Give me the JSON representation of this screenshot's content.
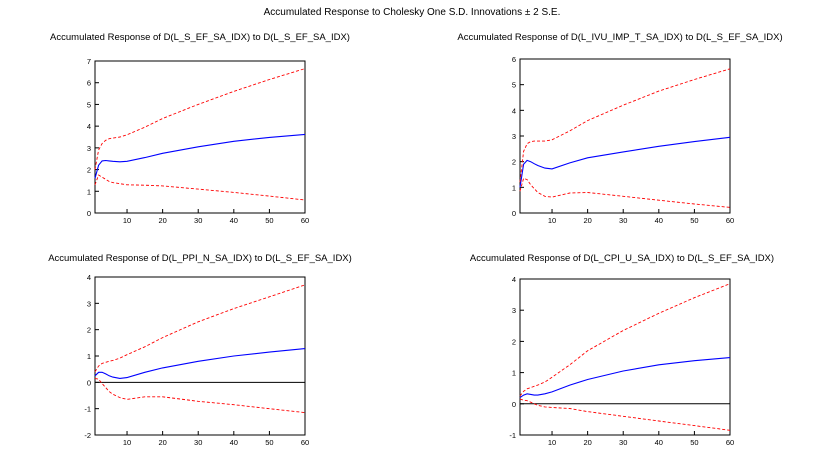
{
  "title": "Accumulated Response to Cholesky One S.D. Innovations ± 2 S.E.",
  "colors": {
    "response": "#0000ff",
    "bands": "#ff0000",
    "zero_line": "#000000",
    "frame": "#000000"
  },
  "chart_data": [
    {
      "type": "line",
      "title": "Accumulated Response of D(L_S_EF_SA_IDX) to D(L_S_EF_SA_IDX)",
      "xlim": [
        1,
        60
      ],
      "ylim": [
        0,
        7
      ],
      "xticks": [
        10,
        20,
        30,
        40,
        50,
        60
      ],
      "yticks": [
        0,
        1,
        2,
        3,
        4,
        5,
        6,
        7
      ],
      "zero_line": false,
      "x": [
        1,
        2,
        3,
        4,
        5,
        6,
        8,
        10,
        15,
        20,
        30,
        40,
        50,
        60
      ],
      "series": [
        {
          "values": [
            1.6,
            2.2,
            2.4,
            2.42,
            2.4,
            2.38,
            2.36,
            2.38,
            2.55,
            2.75,
            3.05,
            3.3,
            3.48,
            3.62
          ]
        },
        {
          "values": [
            2.0,
            2.9,
            3.2,
            3.35,
            3.42,
            3.45,
            3.5,
            3.6,
            3.95,
            4.35,
            5.0,
            5.6,
            6.15,
            6.65
          ]
        },
        {
          "values": [
            1.3,
            1.75,
            1.65,
            1.55,
            1.45,
            1.4,
            1.35,
            1.3,
            1.28,
            1.25,
            1.1,
            0.95,
            0.78,
            0.6
          ]
        }
      ]
    },
    {
      "type": "line",
      "title": "Accumulated Response of D(L_IVU_IMP_T_SA_IDX) to D(L_S_EF_SA_IDX)",
      "xlim": [
        1,
        60
      ],
      "ylim": [
        0,
        6
      ],
      "xticks": [
        10,
        20,
        30,
        40,
        50,
        60
      ],
      "yticks": [
        0,
        1,
        2,
        3,
        4,
        5,
        6
      ],
      "zero_line": false,
      "x": [
        1,
        2,
        3,
        4,
        5,
        6,
        8,
        10,
        15,
        20,
        30,
        40,
        50,
        60
      ],
      "series": [
        {
          "values": [
            1.0,
            1.9,
            2.05,
            2.0,
            1.92,
            1.85,
            1.75,
            1.72,
            1.95,
            2.15,
            2.38,
            2.6,
            2.78,
            2.95
          ]
        },
        {
          "values": [
            1.2,
            2.4,
            2.7,
            2.78,
            2.8,
            2.8,
            2.8,
            2.85,
            3.2,
            3.6,
            4.2,
            4.75,
            5.2,
            5.62
          ]
        },
        {
          "values": [
            0.85,
            1.35,
            1.3,
            1.1,
            0.95,
            0.8,
            0.65,
            0.62,
            0.78,
            0.8,
            0.65,
            0.5,
            0.35,
            0.22
          ]
        }
      ]
    },
    {
      "type": "line",
      "title": "Accumulated Response of D(L_PPI_N_SA_IDX) to D(L_S_EF_SA_IDX)",
      "xlim": [
        1,
        60
      ],
      "ylim": [
        -2,
        4
      ],
      "xticks": [
        10,
        20,
        30,
        40,
        50,
        60
      ],
      "yticks": [
        -2,
        -1,
        0,
        1,
        2,
        3,
        4
      ],
      "zero_line": true,
      "x": [
        1,
        2,
        3,
        4,
        5,
        6,
        8,
        10,
        15,
        20,
        30,
        40,
        50,
        60
      ],
      "series": [
        {
          "values": [
            0.25,
            0.38,
            0.38,
            0.32,
            0.25,
            0.2,
            0.15,
            0.18,
            0.38,
            0.55,
            0.8,
            1.0,
            1.15,
            1.28
          ]
        },
        {
          "values": [
            0.4,
            0.62,
            0.72,
            0.76,
            0.8,
            0.83,
            0.92,
            1.05,
            1.35,
            1.7,
            2.3,
            2.8,
            3.25,
            3.7
          ]
        },
        {
          "values": [
            0.15,
            0.12,
            -0.05,
            -0.2,
            -0.35,
            -0.45,
            -0.58,
            -0.65,
            -0.55,
            -0.55,
            -0.72,
            -0.85,
            -1.0,
            -1.15
          ]
        }
      ]
    },
    {
      "type": "line",
      "title": "Accumulated Response of D(L_CPI_U_SA_IDX) to D(L_S_EF_SA_IDX)",
      "xlim": [
        1,
        60
      ],
      "ylim": [
        -1,
        4
      ],
      "xticks": [
        10,
        20,
        30,
        40,
        50,
        60
      ],
      "yticks": [
        -1,
        0,
        1,
        2,
        3,
        4
      ],
      "zero_line": true,
      "x": [
        1,
        2,
        3,
        4,
        5,
        6,
        8,
        10,
        15,
        20,
        30,
        40,
        50,
        60
      ],
      "series": [
        {
          "values": [
            0.2,
            0.28,
            0.32,
            0.3,
            0.28,
            0.28,
            0.32,
            0.38,
            0.6,
            0.78,
            1.05,
            1.25,
            1.38,
            1.48
          ]
        },
        {
          "values": [
            0.25,
            0.4,
            0.48,
            0.52,
            0.56,
            0.6,
            0.7,
            0.85,
            1.25,
            1.7,
            2.35,
            2.9,
            3.4,
            3.85
          ]
        },
        {
          "values": [
            0.15,
            0.12,
            0.1,
            0.05,
            0.0,
            -0.05,
            -0.1,
            -0.12,
            -0.15,
            -0.25,
            -0.4,
            -0.55,
            -0.7,
            -0.85
          ]
        }
      ]
    }
  ]
}
